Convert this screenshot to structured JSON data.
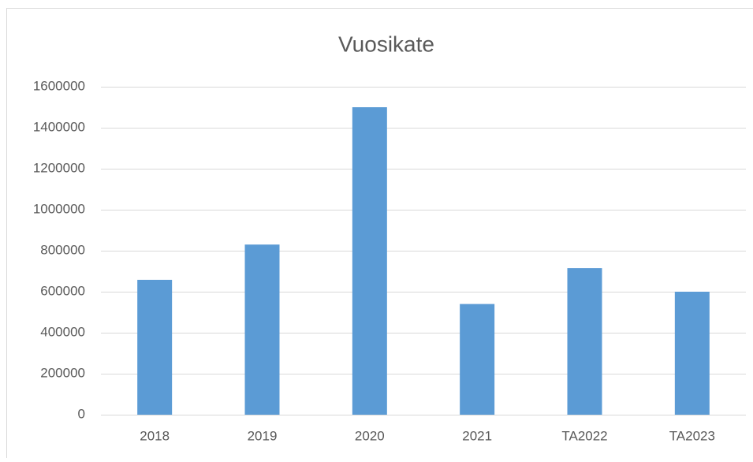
{
  "chart_data": {
    "type": "bar",
    "title": "Vuosikate",
    "categories": [
      "2018",
      "2019",
      "2020",
      "2021",
      "TA2022",
      "TA2023"
    ],
    "values": [
      658000,
      830000,
      1500000,
      540000,
      715000,
      600000
    ],
    "color": "#5b9bd5",
    "ylim": [
      0,
      1600000
    ],
    "yticks": [
      0,
      200000,
      400000,
      600000,
      800000,
      1000000,
      1200000,
      1400000,
      1600000
    ],
    "grid": true
  }
}
